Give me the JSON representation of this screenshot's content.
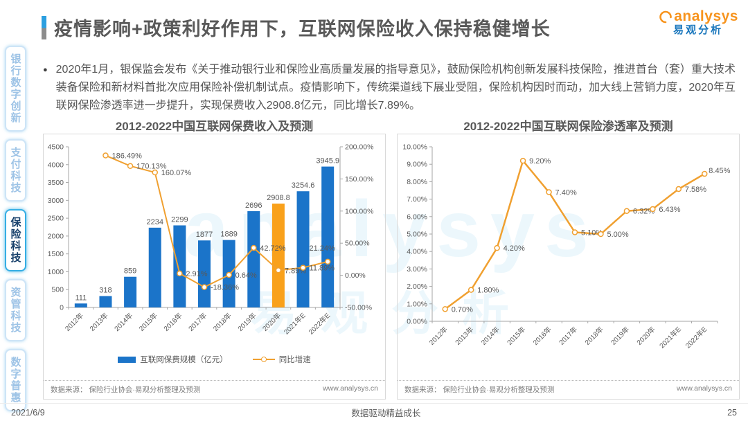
{
  "header": {
    "title": "疫情影响+政策利好作用下，互联网保险收入保持稳健增长",
    "logo_brand": "analysys",
    "logo_cn": "易观分析"
  },
  "intro": {
    "bullet": "●",
    "text": "2020年1月，银保监会发布《关于推动银行业和保险业高质量发展的指导意见》，鼓励保险机构创新发展科技保险，推进首台（套）重大技术装备保险和新材料首批次应用保险补偿机制试点。疫情影响下，传统渠道线下展业受阻，保险机构因时而动，加大线上营销力度，2020年互联网保险渗透率进一步提升，实现保费收入2908.8亿元，同比增长7.89%。"
  },
  "sidebar": {
    "items": [
      {
        "label": "银行数字创新",
        "active": false
      },
      {
        "label": "支付科技",
        "active": false
      },
      {
        "label": "保险科技",
        "active": true
      },
      {
        "label": "资管科技",
        "active": false
      },
      {
        "label": "数字普惠",
        "active": false
      }
    ]
  },
  "watermark": {
    "latin": "analysys",
    "cn": "易观分析"
  },
  "chart_data": [
    {
      "type": "bar",
      "subtype": "combo_bar_line",
      "title": "2012-2022中国互联网保费收入及预测",
      "categories": [
        "2012年",
        "2013年",
        "2014年",
        "2015年",
        "2016年",
        "2017年",
        "2018年",
        "2019年",
        "2020年",
        "2021年E",
        "2022年E"
      ],
      "series": [
        {
          "name": "互联网保费规模（亿元）",
          "type": "bar",
          "axis": "left",
          "values": [
            111,
            318,
            859,
            2234,
            2299,
            1877,
            1889,
            2696,
            2908.8,
            3254.6,
            3945.9
          ],
          "color": "#1b74c9",
          "highlight_index": 8,
          "highlight_color": "#f9a11b"
        },
        {
          "name": "同比增速",
          "type": "line",
          "axis": "right",
          "values": [
            null,
            186.49,
            170.13,
            160.07,
            2.91,
            -18.36,
            0.64,
            42.72,
            7.89,
            11.89,
            21.24
          ],
          "color": "#f0a030",
          "label_suffix": "%"
        }
      ],
      "left_axis": {
        "min": 0,
        "max": 4500,
        "step": 500
      },
      "right_axis": {
        "min": -50,
        "max": 200,
        "step": 50,
        "suffix": "%"
      },
      "grid": false,
      "legend_position": "bottom",
      "source": "数据来源： 保险行业协会·易观分析整理及预测",
      "site": "www.analysys.cn"
    },
    {
      "type": "line",
      "title": "2012-2022中国互联网保险渗透率及预测",
      "categories": [
        "2012年",
        "2013年",
        "2014年",
        "2015年",
        "2016年",
        "2017年",
        "2018年",
        "2019年",
        "2020年",
        "2021年E",
        "2022年E"
      ],
      "series": [
        {
          "name": "互联网保险渗透率",
          "type": "line",
          "values": [
            0.7,
            1.8,
            4.2,
            9.2,
            7.4,
            5.1,
            5.0,
            6.32,
            6.43,
            7.58,
            8.45
          ],
          "color": "#f0a030",
          "label_suffix": "%"
        }
      ],
      "y_axis": {
        "min": 0,
        "max": 10,
        "step": 1,
        "suffix": "%"
      },
      "grid": false,
      "source": "数据来源： 保险行业协会·易观分析整理及预测",
      "site": "www.analysys.cn"
    }
  ],
  "page": {
    "date": "2021/6/9",
    "footer_center": "数据驱动精益成长",
    "page_number": "25"
  }
}
